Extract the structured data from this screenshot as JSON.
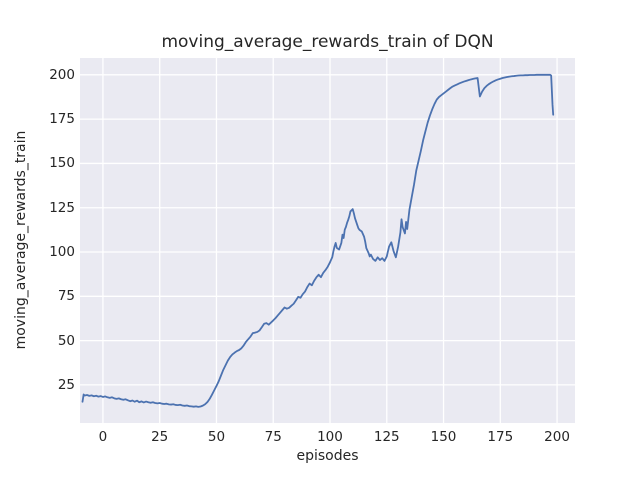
{
  "chart_data": {
    "type": "line",
    "title": "moving_average_rewards_train of DQN",
    "xlabel": "episodes",
    "ylabel": "moving_average_rewards_train",
    "xlim": [
      -10.1,
      207.9
    ],
    "ylim": [
      3.5,
      209.5
    ],
    "xticks": [
      0,
      25,
      50,
      75,
      100,
      125,
      150,
      175,
      200
    ],
    "yticks": [
      25,
      50,
      75,
      100,
      125,
      150,
      175,
      200
    ],
    "grid": true,
    "legend": false,
    "colors": {
      "line": "#4c72b0",
      "plot_background": "#eaeaf2",
      "figure_background": "#ffffff",
      "gridline": "#ffffff",
      "text": "#262626"
    },
    "series": [
      {
        "name": "moving_average_rewards_train",
        "points": [
          [
            -9,
            15.5
          ],
          [
            -8.5,
            19.6
          ],
          [
            -8,
            19.0
          ],
          [
            -7,
            19.3
          ],
          [
            -6,
            18.8
          ],
          [
            -5,
            19.1
          ],
          [
            -4,
            18.6
          ],
          [
            -3,
            18.9
          ],
          [
            -2,
            18.4
          ],
          [
            -1,
            18.7
          ],
          [
            0,
            18.2
          ],
          [
            1,
            18.5
          ],
          [
            2,
            18.0
          ],
          [
            3,
            17.7
          ],
          [
            4,
            18.0
          ],
          [
            5,
            17.4
          ],
          [
            6,
            17.1
          ],
          [
            7,
            17.4
          ],
          [
            8,
            16.9
          ],
          [
            9,
            16.6
          ],
          [
            10,
            16.9
          ],
          [
            11,
            16.3
          ],
          [
            12,
            15.8
          ],
          [
            13,
            16.2
          ],
          [
            14,
            15.5
          ],
          [
            15,
            16.1
          ],
          [
            16,
            15.2
          ],
          [
            17,
            15.7
          ],
          [
            18,
            15.1
          ],
          [
            19,
            15.6
          ],
          [
            20,
            15.2
          ],
          [
            21,
            14.9
          ],
          [
            22,
            15.2
          ],
          [
            23,
            14.8
          ],
          [
            24,
            14.6
          ],
          [
            25,
            14.8
          ],
          [
            26,
            14.4
          ],
          [
            27,
            14.2
          ],
          [
            28,
            14.4
          ],
          [
            29,
            14.0
          ],
          [
            30,
            13.9
          ],
          [
            31,
            14.1
          ],
          [
            32,
            13.7
          ],
          [
            33,
            13.6
          ],
          [
            34,
            13.8
          ],
          [
            35,
            13.4
          ],
          [
            36,
            13.2
          ],
          [
            37,
            13.4
          ],
          [
            38,
            13.0
          ],
          [
            39,
            12.9
          ],
          [
            40,
            12.7
          ],
          [
            41,
            12.9
          ],
          [
            42,
            12.6
          ],
          [
            43,
            12.8
          ],
          [
            44,
            13.3
          ],
          [
            45,
            14.1
          ],
          [
            46,
            15.3
          ],
          [
            47,
            17.1
          ],
          [
            48,
            19.4
          ],
          [
            49,
            21.9
          ],
          [
            50,
            24.4
          ],
          [
            51,
            27.1
          ],
          [
            52,
            30.3
          ],
          [
            53,
            33.5
          ],
          [
            54,
            36.1
          ],
          [
            55,
            38.7
          ],
          [
            56,
            40.7
          ],
          [
            57,
            42.2
          ],
          [
            58,
            43.2
          ],
          [
            59,
            44.1
          ],
          [
            60,
            44.7
          ],
          [
            61,
            45.7
          ],
          [
            62,
            47.3
          ],
          [
            63,
            49.3
          ],
          [
            64,
            50.8
          ],
          [
            65,
            52.3
          ],
          [
            66,
            54.2
          ],
          [
            67,
            54.5
          ],
          [
            68,
            54.9
          ],
          [
            69,
            55.8
          ],
          [
            70,
            57.6
          ],
          [
            71,
            59.5
          ],
          [
            72,
            59.9
          ],
          [
            73,
            59.0
          ],
          [
            74,
            60.2
          ],
          [
            75,
            61.4
          ],
          [
            76,
            62.7
          ],
          [
            77,
            64.2
          ],
          [
            78,
            65.7
          ],
          [
            79,
            67.2
          ],
          [
            80,
            68.7
          ],
          [
            81,
            68.0
          ],
          [
            82,
            68.5
          ],
          [
            83,
            69.7
          ],
          [
            84,
            70.8
          ],
          [
            85,
            72.7
          ],
          [
            86,
            74.7
          ],
          [
            87,
            74.2
          ],
          [
            88,
            76.2
          ],
          [
            89,
            77.7
          ],
          [
            90,
            80.2
          ],
          [
            91,
            82.2
          ],
          [
            92,
            81.2
          ],
          [
            93,
            83.7
          ],
          [
            94,
            85.7
          ],
          [
            95,
            87.2
          ],
          [
            96,
            85.8
          ],
          [
            97,
            88.2
          ],
          [
            98,
            89.8
          ],
          [
            99,
            91.7
          ],
          [
            100,
            94.2
          ],
          [
            101,
            97.1
          ],
          [
            101.5,
            100.4
          ],
          [
            102,
            103.1
          ],
          [
            102.5,
            105.1
          ],
          [
            103,
            102.3
          ],
          [
            104,
            101.4
          ],
          [
            105,
            105.1
          ],
          [
            105.5,
            109.8
          ],
          [
            106,
            107.9
          ],
          [
            106.5,
            112.6
          ],
          [
            107,
            114.1
          ],
          [
            107.5,
            116.4
          ],
          [
            108,
            118.1
          ],
          [
            108.5,
            120.1
          ],
          [
            109,
            122.9
          ],
          [
            110,
            124.2
          ],
          [
            110.5,
            121.9
          ],
          [
            111,
            119.1
          ],
          [
            112,
            115.3
          ],
          [
            112.5,
            113.4
          ],
          [
            113,
            112.5
          ],
          [
            114,
            111.6
          ],
          [
            115,
            108.7
          ],
          [
            115.5,
            105.9
          ],
          [
            116,
            102.2
          ],
          [
            117,
            99.4
          ],
          [
            117.5,
            97.5
          ],
          [
            118,
            98.5
          ],
          [
            119,
            96.0
          ],
          [
            120,
            95.0
          ],
          [
            121,
            97.0
          ],
          [
            122,
            95.5
          ],
          [
            123,
            96.5
          ],
          [
            124,
            95.0
          ],
          [
            125,
            97.5
          ],
          [
            126,
            103.0
          ],
          [
            127,
            105.5
          ],
          [
            128,
            100.5
          ],
          [
            129,
            97.0
          ],
          [
            130,
            103.0
          ],
          [
            131,
            111.0
          ],
          [
            131.5,
            118.5
          ],
          [
            132,
            114.0
          ],
          [
            133,
            110.5
          ],
          [
            133.5,
            117.0
          ],
          [
            134,
            113.0
          ],
          [
            135,
            124.0
          ],
          [
            136,
            131.0
          ],
          [
            137,
            138.0
          ],
          [
            138,
            146.0
          ],
          [
            139,
            151.5
          ],
          [
            140,
            157.0
          ],
          [
            141,
            163.0
          ],
          [
            142,
            168.0
          ],
          [
            143,
            173.0
          ],
          [
            144,
            177.0
          ],
          [
            145,
            180.5
          ],
          [
            146,
            183.5
          ],
          [
            147,
            186.0
          ],
          [
            148,
            187.5
          ],
          [
            149,
            188.5
          ],
          [
            150,
            189.5
          ],
          [
            151,
            190.5
          ],
          [
            152,
            191.5
          ],
          [
            153,
            192.5
          ],
          [
            154,
            193.4
          ],
          [
            155,
            194.0
          ],
          [
            156,
            194.6
          ],
          [
            157,
            195.2
          ],
          [
            158,
            195.7
          ],
          [
            159,
            196.2
          ],
          [
            160,
            196.6
          ],
          [
            161,
            197.0
          ],
          [
            162,
            197.4
          ],
          [
            163,
            197.7
          ],
          [
            164,
            198.0
          ],
          [
            165,
            198.2
          ],
          [
            166,
            187.8
          ],
          [
            167,
            190.5
          ],
          [
            168,
            192.5
          ],
          [
            169,
            193.8
          ],
          [
            170,
            194.8
          ],
          [
            171,
            195.6
          ],
          [
            172,
            196.3
          ],
          [
            173,
            196.9
          ],
          [
            174,
            197.4
          ],
          [
            175,
            197.8
          ],
          [
            176,
            198.2
          ],
          [
            177,
            198.5
          ],
          [
            178,
            198.8
          ],
          [
            179,
            199.0
          ],
          [
            180,
            199.2
          ],
          [
            181,
            199.3
          ],
          [
            182,
            199.5
          ],
          [
            183,
            199.6
          ],
          [
            184,
            199.7
          ],
          [
            185,
            199.7
          ],
          [
            186,
            199.8
          ],
          [
            187,
            199.8
          ],
          [
            188,
            199.9
          ],
          [
            189,
            199.9
          ],
          [
            190,
            199.9
          ],
          [
            191,
            200.0
          ],
          [
            192,
            200.0
          ],
          [
            193,
            200.0
          ],
          [
            194,
            200.0
          ],
          [
            195,
            200.0
          ],
          [
            196,
            200.0
          ],
          [
            197,
            200.0
          ],
          [
            197.4,
            199.6
          ],
          [
            198,
            183.0
          ],
          [
            198.3,
            177.5
          ]
        ]
      }
    ]
  }
}
